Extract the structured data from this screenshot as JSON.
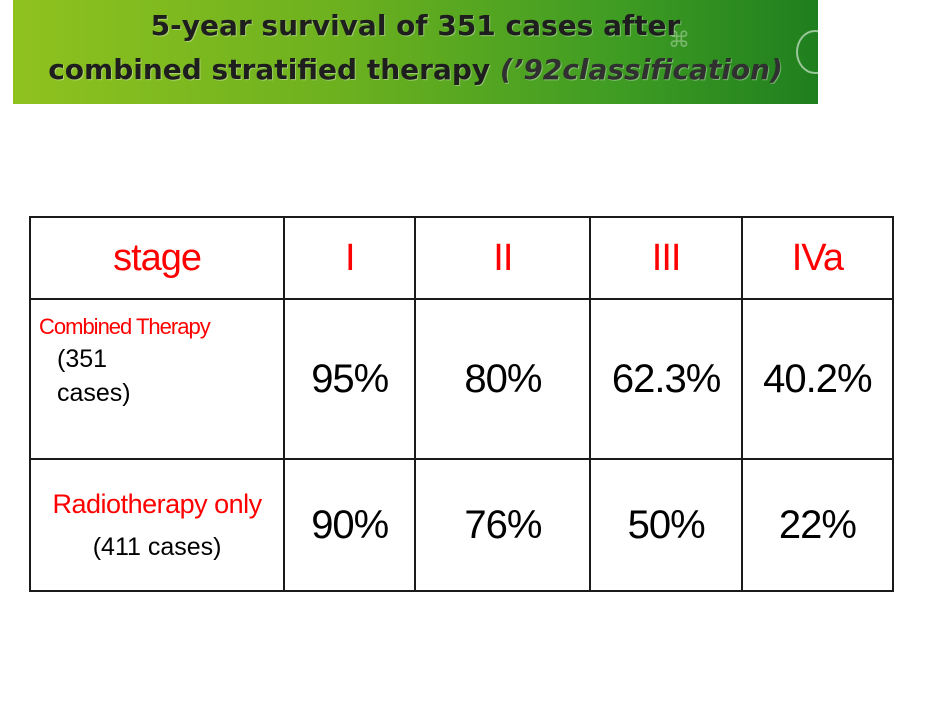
{
  "title": {
    "line1": "5-year survival of 351 cases after",
    "line2_main": "combined stratified therapy ",
    "line2_italic": "(’92classification)"
  },
  "table": {
    "headers": [
      "stage",
      "I",
      "II",
      "III",
      "IVa"
    ],
    "rows": [
      {
        "label": "Combined Therapy",
        "cases": "(351 cases)",
        "values": [
          "95%",
          "80%",
          "62.3%",
          "40.2%"
        ]
      },
      {
        "label": "Radiotherapy only",
        "cases": "(411 cases)",
        "values": [
          "90%",
          "76%",
          "50%",
          "22%"
        ]
      }
    ]
  },
  "colors": {
    "header_text": "#ff0000",
    "value_text": "#000000",
    "banner_start": "#8fc21f",
    "banner_end": "#1f7f1e"
  }
}
